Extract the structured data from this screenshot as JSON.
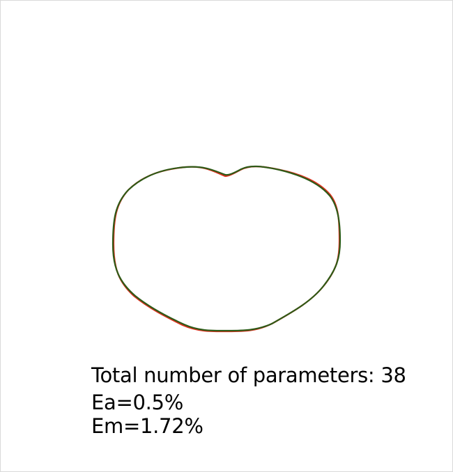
{
  "figure": {
    "params_label": "Total number of parameters: 38",
    "ea_label": "Ea=0.5%",
    "em_label": "Em=1.72%"
  },
  "colors": {
    "background": "#ffffff",
    "original_contour": "#e0301e",
    "fitted_contour": "#2e5a17",
    "text": "#000000"
  }
}
